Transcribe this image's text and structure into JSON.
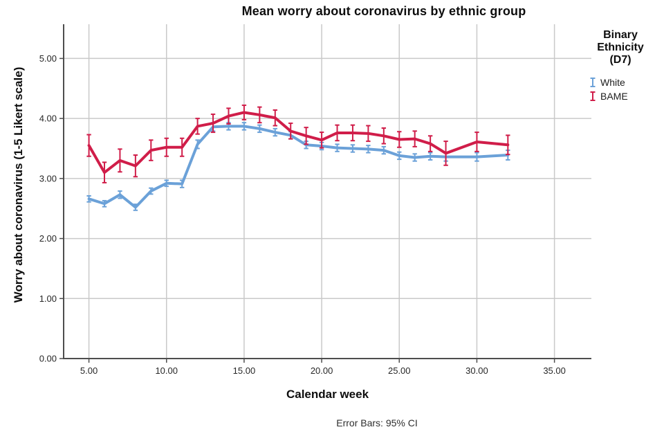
{
  "chart": {
    "title": "Mean worry about coronavirus by ethnic group",
    "footnote": "Error Bars: 95% CI"
  },
  "legend": {
    "title_lines": [
      "Binary",
      "Ethnicity",
      "(D7)"
    ],
    "title": "Binary Ethnicity (D7)",
    "items": [
      {
        "label": "White",
        "color": "#6BA1D8",
        "icon": "error-bar-glyph"
      },
      {
        "label": "BAME",
        "color": "#D01D49",
        "icon": "error-bar-glyph"
      }
    ]
  },
  "chart_data": {
    "type": "line",
    "title": "Mean worry about coronavirus by ethnic group",
    "xlabel": "Calendar week",
    "ylabel": "Worry about coronavirus (1-5 Likert scale)",
    "error_bars": "95% CI",
    "legend_title": "Binary Ethnicity (D7)",
    "legend_position": "right",
    "grid": true,
    "xlim": [
      3.37,
      37.38
    ],
    "ylim": [
      0,
      5.57
    ],
    "x_ticks": {
      "values": [
        5,
        10,
        15,
        20,
        25,
        30,
        35
      ],
      "labels": [
        "5.00",
        "10.00",
        "15.00",
        "20.00",
        "25.00",
        "30.00",
        "35.00"
      ]
    },
    "y_ticks": {
      "values": [
        0,
        1,
        2,
        3,
        4,
        5
      ],
      "labels": [
        "0.00",
        "1.00",
        "2.00",
        "3.00",
        "4.00",
        "5.00"
      ]
    },
    "x": [
      5,
      6,
      7,
      8,
      9,
      10,
      11,
      12,
      13,
      14,
      15,
      16,
      17,
      18,
      19,
      20,
      21,
      22,
      23,
      24,
      25,
      26,
      27,
      28,
      30,
      32
    ],
    "series": [
      {
        "name": "White",
        "color": "#6BA1D8",
        "y": [
          2.66,
          2.58,
          2.73,
          2.52,
          2.79,
          2.92,
          2.91,
          3.57,
          3.86,
          3.87,
          3.87,
          3.83,
          3.77,
          3.72,
          3.56,
          3.54,
          3.51,
          3.5,
          3.49,
          3.47,
          3.38,
          3.35,
          3.37,
          3.36,
          3.36,
          3.39
        ],
        "ci": [
          0.05,
          0.05,
          0.06,
          0.05,
          0.05,
          0.05,
          0.06,
          0.07,
          0.07,
          0.06,
          0.06,
          0.06,
          0.06,
          0.06,
          0.06,
          0.06,
          0.06,
          0.06,
          0.06,
          0.06,
          0.06,
          0.06,
          0.06,
          0.07,
          0.07,
          0.08
        ]
      },
      {
        "name": "BAME",
        "color": "#D01D49",
        "y": [
          3.55,
          3.1,
          3.3,
          3.21,
          3.47,
          3.52,
          3.52,
          3.87,
          3.92,
          4.04,
          4.1,
          4.06,
          4.01,
          3.79,
          3.71,
          3.64,
          3.76,
          3.76,
          3.75,
          3.71,
          3.65,
          3.66,
          3.58,
          3.42,
          3.61,
          3.56
        ],
        "ci": [
          0.18,
          0.17,
          0.19,
          0.18,
          0.17,
          0.15,
          0.15,
          0.13,
          0.15,
          0.13,
          0.12,
          0.13,
          0.13,
          0.13,
          0.14,
          0.13,
          0.13,
          0.13,
          0.13,
          0.13,
          0.13,
          0.13,
          0.13,
          0.2,
          0.16,
          0.16
        ]
      }
    ]
  },
  "colors": {
    "axis": "#4d4d4d",
    "gridline": "#c9c9c9",
    "tick_text": "#262626"
  }
}
